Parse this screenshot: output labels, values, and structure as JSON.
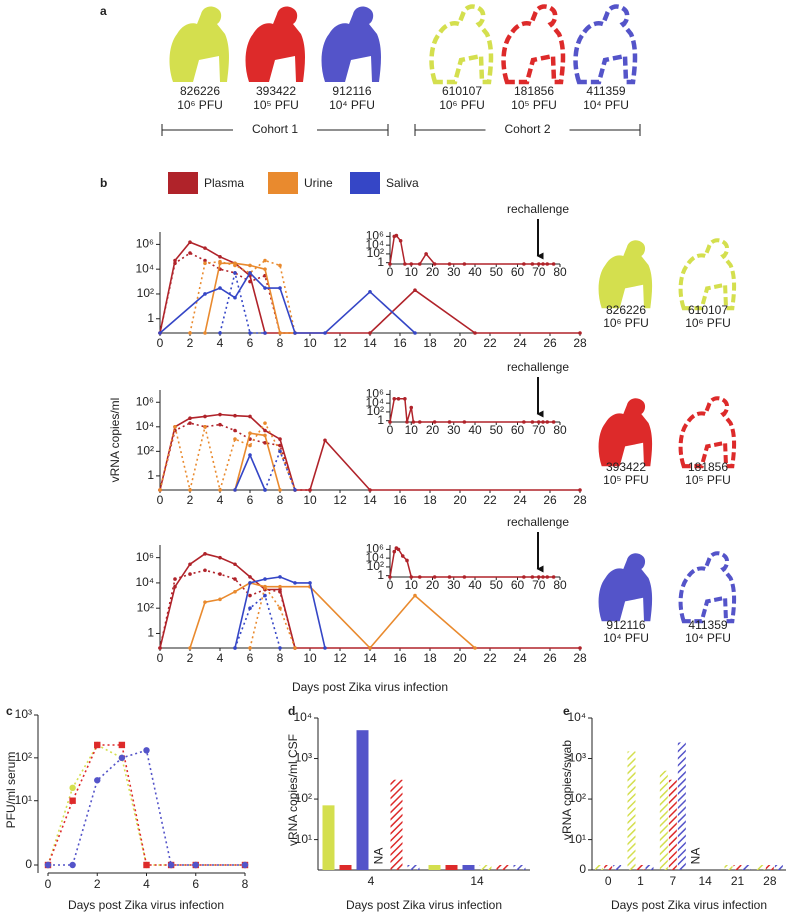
{
  "panel_a": {
    "label": "a",
    "animals": [
      {
        "id": "826226",
        "dose": "10⁶ PFU",
        "color": "#d4df4e",
        "outline": false
      },
      {
        "id": "393422",
        "dose": "10⁵ PFU",
        "color": "#dd2a2a",
        "outline": false
      },
      {
        "id": "912116",
        "dose": "10⁴ PFU",
        "color": "#5454c9",
        "outline": false
      },
      {
        "id": "610107",
        "dose": "10⁶ PFU",
        "color": "#d4df4e",
        "outline": true
      },
      {
        "id": "181856",
        "dose": "10⁵ PFU",
        "color": "#dd2a2a",
        "outline": true
      },
      {
        "id": "411359",
        "dose": "10⁴ PFU",
        "color": "#5454c9",
        "outline": true
      }
    ],
    "cohorts": [
      "Cohort 1",
      "Cohort 2"
    ]
  },
  "panel_b": {
    "label": "b",
    "legend": [
      {
        "name": "Plasma",
        "color": "#b0232a"
      },
      {
        "name": "Urine",
        "color": "#e98a2e"
      },
      {
        "name": "Saliva",
        "color": "#3546c6"
      }
    ],
    "ylabel": "vRNA copies/ml",
    "xlabel": "Days post Zika virus infection"
  },
  "chart_data": [
    {
      "type": "line",
      "log": true,
      "xlim": [
        0,
        28
      ],
      "xticks": [
        0,
        2,
        4,
        6,
        8,
        10,
        12,
        14,
        16,
        18,
        20,
        22,
        24,
        26,
        28
      ],
      "ylim": [
        0,
        10000000
      ],
      "yticks": [
        1,
        {
          "value": 100,
          "label": "10²"
        },
        {
          "value": 10000,
          "label": "10⁴"
        },
        {
          "value": 1000000,
          "label": "10⁶"
        }
      ],
      "series": [
        {
          "color": "#b0232a",
          "style": "solid",
          "x": [
            0,
            1,
            2,
            3,
            4,
            5,
            6,
            7,
            14,
            17,
            21,
            28
          ],
          "values": [
            0,
            50000,
            1500000,
            500000,
            100000,
            30000,
            3000,
            0,
            0,
            200,
            0,
            0
          ]
        },
        {
          "color": "#b0232a",
          "style": "dotted",
          "x": [
            0,
            1,
            2,
            3,
            4,
            5,
            6,
            7,
            8,
            9
          ],
          "values": [
            0,
            30000,
            200000,
            50000,
            10000,
            5000,
            1000,
            3000,
            0,
            0
          ]
        },
        {
          "color": "#e98a2e",
          "style": "solid",
          "x": [
            3,
            4,
            5,
            6,
            7,
            8,
            9
          ],
          "values": [
            0,
            30000,
            30000,
            20000,
            10000,
            0,
            0
          ]
        },
        {
          "color": "#e98a2e",
          "style": "dotted",
          "x": [
            2,
            3,
            4,
            5,
            6,
            7,
            8,
            9
          ],
          "values": [
            0,
            30000,
            40000,
            20000,
            5000,
            50000,
            20000,
            0
          ]
        },
        {
          "color": "#3546c6",
          "style": "solid",
          "x": [
            0,
            3,
            4,
            5,
            6,
            7,
            8,
            9,
            11,
            14,
            17
          ],
          "values": [
            0,
            100,
            300,
            50,
            5000,
            300,
            300,
            0,
            0,
            150,
            0
          ]
        },
        {
          "color": "#3546c6",
          "style": "dotted",
          "x": [
            4,
            5,
            6,
            7
          ],
          "values": [
            0,
            5000,
            0,
            0
          ]
        }
      ],
      "inset": {
        "xlim": [
          0,
          80
        ],
        "xticks": [
          0,
          10,
          20,
          30,
          40,
          50,
          60,
          70,
          80
        ],
        "ylim": [
          0,
          10000000
        ],
        "yticks": [
          1,
          {
            "value": 100,
            "label": "10²"
          },
          {
            "value": 10000,
            "label": "10⁴"
          },
          {
            "value": 1000000,
            "label": "10⁶"
          }
        ],
        "color": "#b0232a",
        "x": [
          0,
          2,
          3,
          5,
          7,
          10,
          14,
          17,
          21,
          28,
          35,
          63,
          67,
          70,
          72,
          74,
          77
        ],
        "values": [
          0,
          1000000,
          1500000,
          100000,
          0,
          0,
          0,
          100,
          0,
          0,
          0,
          0,
          0,
          0,
          0,
          0,
          0
        ],
        "annotation": "rechallenge"
      },
      "animals": [
        {
          "id": "826226",
          "dose": "10⁶ PFU",
          "color": "#d4df4e",
          "outline": false
        },
        {
          "id": "610107",
          "dose": "10⁶ PFU",
          "color": "#d4df4e",
          "outline": true
        }
      ]
    },
    {
      "type": "line",
      "log": true,
      "xlim": [
        0,
        28
      ],
      "xticks": [
        0,
        2,
        4,
        6,
        8,
        10,
        12,
        14,
        16,
        18,
        20,
        22,
        24,
        26,
        28
      ],
      "ylim": [
        0,
        10000000
      ],
      "yticks": [
        1,
        {
          "value": 100,
          "label": "10²"
        },
        {
          "value": 10000,
          "label": "10⁴"
        },
        {
          "value": 1000000,
          "label": "10⁶"
        }
      ],
      "series": [
        {
          "color": "#b0232a",
          "style": "solid",
          "x": [
            0,
            1,
            2,
            3,
            4,
            5,
            6,
            7,
            8,
            9,
            10,
            11,
            14,
            28
          ],
          "values": [
            0,
            10000,
            50000,
            70000,
            100000,
            80000,
            70000,
            5000,
            1000,
            0,
            0,
            800,
            0,
            0
          ]
        },
        {
          "color": "#b0232a",
          "style": "dotted",
          "x": [
            0,
            1,
            2,
            3,
            4,
            5,
            6,
            7,
            8,
            9,
            10
          ],
          "values": [
            0,
            5000,
            20000,
            10000,
            15000,
            5000,
            1000,
            500,
            300,
            0,
            0
          ]
        },
        {
          "color": "#e98a2e",
          "style": "solid",
          "x": [
            5,
            6,
            7,
            8
          ],
          "values": [
            0,
            3000,
            2000,
            0
          ]
        },
        {
          "color": "#e98a2e",
          "style": "dotted",
          "x": [
            0,
            1,
            2,
            3,
            4,
            5,
            6,
            7,
            8,
            9
          ],
          "values": [
            0,
            10000,
            0,
            10000,
            0,
            1000,
            300,
            20000,
            100,
            0
          ]
        },
        {
          "color": "#3546c6",
          "style": "solid",
          "x": [
            5,
            6,
            7
          ],
          "values": [
            0,
            50,
            0
          ]
        },
        {
          "color": "#3546c6",
          "style": "dotted",
          "x": [
            7,
            8,
            9
          ],
          "values": [
            0,
            100,
            0
          ]
        }
      ],
      "inset": {
        "xlim": [
          0,
          80
        ],
        "xticks": [
          0,
          10,
          20,
          30,
          40,
          50,
          60,
          70,
          80
        ],
        "ylim": [
          0,
          10000000
        ],
        "yticks": [
          1,
          {
            "value": 100,
            "label": "10²"
          },
          {
            "value": 10000,
            "label": "10⁴"
          },
          {
            "value": 1000000,
            "label": "10⁶"
          }
        ],
        "color": "#b0232a",
        "x": [
          0,
          2,
          4,
          7,
          8,
          10,
          11,
          14,
          21,
          28,
          35,
          63,
          67,
          70,
          72,
          74,
          77
        ],
        "values": [
          0,
          100000,
          100000,
          100000,
          0,
          1000,
          0,
          0,
          0,
          0,
          0,
          0,
          0,
          0,
          0,
          0,
          0
        ],
        "annotation": "rechallenge"
      },
      "animals": [
        {
          "id": "393422",
          "dose": "10⁵ PFU",
          "color": "#dd2a2a",
          "outline": false
        },
        {
          "id": "181856",
          "dose": "10⁵ PFU",
          "color": "#dd2a2a",
          "outline": true
        }
      ]
    },
    {
      "type": "line",
      "log": true,
      "xlim": [
        0,
        28
      ],
      "xticks": [
        0,
        2,
        4,
        6,
        8,
        10,
        12,
        14,
        16,
        18,
        20,
        22,
        24,
        26,
        28
      ],
      "ylim": [
        0,
        10000000
      ],
      "yticks": [
        1,
        {
          "value": 100,
          "label": "10²"
        },
        {
          "value": 10000,
          "label": "10⁴"
        },
        {
          "value": 1000000,
          "label": "10⁶"
        }
      ],
      "series": [
        {
          "color": "#b0232a",
          "style": "solid",
          "x": [
            0,
            1,
            2,
            3,
            4,
            5,
            6,
            7,
            8,
            9,
            14,
            28
          ],
          "values": [
            0,
            5000,
            300000,
            2000000,
            1000000,
            300000,
            30000,
            3000,
            3000,
            0,
            0,
            0
          ]
        },
        {
          "color": "#b0232a",
          "style": "dotted",
          "x": [
            0,
            1,
            2,
            3,
            4,
            5,
            6,
            7,
            8,
            9
          ],
          "values": [
            0,
            20000,
            50000,
            100000,
            50000,
            20000,
            1000,
            3000,
            2000,
            0
          ]
        },
        {
          "color": "#e98a2e",
          "style": "solid",
          "x": [
            2,
            3,
            4,
            5,
            6,
            7,
            8,
            10,
            14,
            17,
            21
          ],
          "values": [
            0,
            300,
            500,
            2000,
            10000,
            5000,
            5000,
            5000,
            0,
            1000,
            0
          ]
        },
        {
          "color": "#e98a2e",
          "style": "dotted",
          "x": [
            6,
            7,
            8,
            9
          ],
          "values": [
            0,
            5000,
            100,
            0
          ]
        },
        {
          "color": "#3546c6",
          "style": "solid",
          "x": [
            5,
            6,
            7,
            8,
            9,
            10,
            11
          ],
          "values": [
            0,
            10000,
            20000,
            30000,
            10000,
            10000,
            0
          ]
        },
        {
          "color": "#3546c6",
          "style": "dotted",
          "x": [
            5,
            6,
            7,
            8
          ],
          "values": [
            0,
            100,
            1000,
            0
          ]
        }
      ],
      "inset": {
        "xlim": [
          0,
          80
        ],
        "xticks": [
          0,
          10,
          20,
          30,
          40,
          50,
          60,
          70,
          80
        ],
        "ylim": [
          0,
          10000000
        ],
        "yticks": [
          1,
          {
            "value": 100,
            "label": "10²"
          },
          {
            "value": 10000,
            "label": "10⁴"
          },
          {
            "value": 1000000,
            "label": "10⁶"
          }
        ],
        "color": "#b0232a",
        "x": [
          0,
          2,
          3,
          4,
          6,
          8,
          10,
          14,
          21,
          28,
          35,
          63,
          67,
          70,
          72,
          74,
          77
        ],
        "values": [
          0,
          300000,
          2000000,
          1000000,
          30000,
          3000,
          0,
          0,
          0,
          0,
          0,
          0,
          0,
          0,
          0,
          0,
          0
        ],
        "annotation": "rechallenge"
      },
      "animals": [
        {
          "id": "912116",
          "dose": "10⁴ PFU",
          "color": "#5454c9",
          "outline": false
        },
        {
          "id": "411359",
          "dose": "10⁴ PFU",
          "color": "#5454c9",
          "outline": true
        }
      ]
    },
    {
      "type": "line",
      "label": "c",
      "log": true,
      "ylabel": "PFU/ml serum",
      "xlabel": "Days post Zika virus infection",
      "xlim": [
        0,
        8
      ],
      "xticks": [
        0,
        2,
        4,
        6,
        8
      ],
      "ylim": [
        0,
        1000
      ],
      "yticks": [
        0,
        {
          "value": 10,
          "label": "10¹"
        },
        {
          "value": 100,
          "label": "10²"
        },
        {
          "value": 1000,
          "label": "10³"
        }
      ],
      "series": [
        {
          "color": "#d4df4e",
          "style": "dotted",
          "marker": "circle",
          "x": [
            0,
            1,
            2,
            3,
            4,
            5,
            6,
            8
          ],
          "values": [
            0,
            20,
            200,
            100,
            0,
            0,
            0,
            0
          ]
        },
        {
          "color": "#dd2a2a",
          "style": "dotted",
          "marker": "square",
          "x": [
            0,
            1,
            2,
            3,
            4,
            5,
            6,
            8
          ],
          "values": [
            0,
            10,
            200,
            200,
            0,
            0,
            0,
            0
          ]
        },
        {
          "color": "#5454c9",
          "style": "dotted",
          "marker": "circle",
          "x": [
            0,
            1,
            2,
            3,
            4,
            5,
            6,
            8
          ],
          "values": [
            0,
            0,
            30,
            100,
            150,
            0,
            0,
            0
          ]
        }
      ]
    },
    {
      "type": "bar",
      "label": "d",
      "log": true,
      "ylabel": "vRNA copies/ml CSF",
      "xlabel": "Days post Zika virus infection",
      "categories": [
        "4",
        "14"
      ],
      "ylim": [
        0,
        10000
      ],
      "yticks": [
        {
          "value": 10,
          "label": "10¹"
        },
        {
          "value": 100,
          "label": "10²"
        },
        {
          "value": 1000,
          "label": "10³"
        },
        {
          "value": 10000,
          "label": "10⁴"
        }
      ],
      "na_label": "NA",
      "series": [
        {
          "color": "#d4df4e",
          "hatched": false,
          "values": [
            70,
            0
          ]
        },
        {
          "color": "#dd2a2a",
          "hatched": false,
          "values": [
            0,
            0
          ]
        },
        {
          "color": "#5454c9",
          "hatched": false,
          "values": [
            5000,
            0
          ]
        },
        {
          "color": "#d4df4e",
          "hatched": true,
          "values": [
            null,
            0
          ]
        },
        {
          "color": "#dd2a2a",
          "hatched": true,
          "values": [
            300,
            0
          ]
        },
        {
          "color": "#5454c9",
          "hatched": true,
          "values": [
            0,
            0
          ]
        }
      ]
    },
    {
      "type": "bar",
      "label": "e",
      "log": true,
      "ylabel": "vRNA copies/swab",
      "xlabel": "Days post Zika virus infection",
      "categories": [
        "0",
        "1",
        "7",
        "14",
        "21",
        "28"
      ],
      "ylim": [
        0,
        10000
      ],
      "yticks": [
        0,
        {
          "value": 10,
          "label": "10¹"
        },
        {
          "value": 100,
          "label": "10²"
        },
        {
          "value": 1000,
          "label": "10³"
        },
        {
          "value": 10000,
          "label": "10⁴"
        }
      ],
      "na_label": "NA",
      "series": [
        {
          "color": "#d4df4e",
          "hatched": true,
          "values": [
            0,
            1500,
            500,
            null,
            0,
            0
          ]
        },
        {
          "color": "#dd2a2a",
          "hatched": true,
          "values": [
            0,
            0,
            300,
            null,
            0,
            0
          ]
        },
        {
          "color": "#5454c9",
          "hatched": true,
          "values": [
            0,
            0,
            2500,
            null,
            0,
            0
          ]
        }
      ]
    }
  ]
}
